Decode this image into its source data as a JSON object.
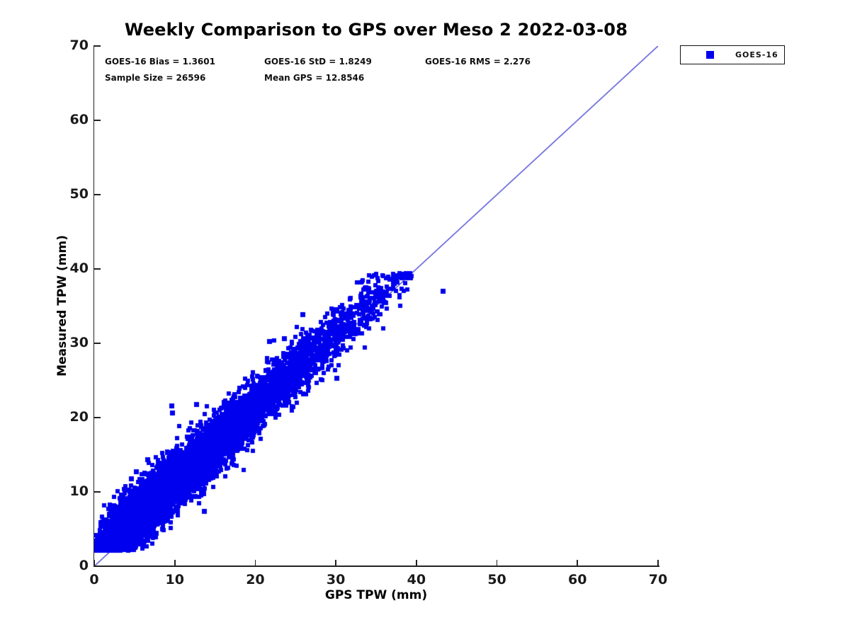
{
  "title": "Weekly Comparison to GPS over Meso 2 2022-03-08",
  "annotations": {
    "bias": "GOES-16 Bias = 1.3601",
    "std": "GOES-16 StD = 1.8249",
    "rms": "GOES-16 RMS = 2.276",
    "sample_size": "Sample Size = 26596",
    "mean_gps": "Mean GPS = 12.8546"
  },
  "axes": {
    "xlabel": "GPS TPW (mm)",
    "ylabel": "Measured TPW (mm)",
    "x_ticks": [
      "0",
      "10",
      "20",
      "30",
      "40",
      "50",
      "60",
      "70"
    ],
    "y_ticks": [
      "0",
      "10",
      "20",
      "30",
      "40",
      "50",
      "60",
      "70"
    ],
    "xlim": [
      0,
      70
    ],
    "ylim": [
      0,
      70
    ]
  },
  "legend": {
    "entries": [
      {
        "label": "GOES-16",
        "marker": "square",
        "color": "#0000ee"
      }
    ]
  },
  "colors": {
    "marker": "#0000ee",
    "reference_line": "#2222cc",
    "axis": "#222222",
    "text": "#000000",
    "background": "#ffffff"
  },
  "chart_data": {
    "type": "scatter",
    "title": "Weekly Comparison to GPS over Meso 2 2022-03-08",
    "xlabel": "GPS TPW (mm)",
    "ylabel": "Measured TPW (mm)",
    "xlim": [
      0,
      70
    ],
    "ylim": [
      0,
      70
    ],
    "grid": false,
    "legend_position": "top-right-outside",
    "reference_line": {
      "type": "identity",
      "from": [
        0,
        0
      ],
      "to": [
        70,
        70
      ],
      "color": "#2222cc"
    },
    "series": [
      {
        "name": "GOES-16",
        "marker": "square",
        "color": "#0000ee",
        "sample_size": 26596,
        "bias": 1.3601,
        "std": 1.8249,
        "rms": 2.276,
        "mean_gps": 12.8546,
        "x_range_observed": [
          0,
          43.5
        ],
        "y_range_observed": [
          2.0,
          39.5
        ],
        "render": {
          "seed": 20220308,
          "points_rendered": 8000,
          "x_gamma_shape": 2,
          "x_gamma_scale": 6.43,
          "x_max": 39.5,
          "y_floor": 2.05,
          "y_max": 39.5,
          "marker_px": 6,
          "stray_probability": 0.004,
          "stray_spread": 9
        },
        "notable_points": [
          [
            43.3,
            37.0
          ],
          [
            38.8,
            38.8
          ],
          [
            9.6,
            21.6
          ],
          [
            9.7,
            20.6
          ],
          [
            12.7,
            21.8
          ],
          [
            6.6,
            14.3
          ],
          [
            5.2,
            12.7
          ],
          [
            4.6,
            11.8
          ],
          [
            13.7,
            7.4
          ],
          [
            21.8,
            30.2
          ],
          [
            23.6,
            30.6
          ],
          [
            30.1,
            25.3
          ],
          [
            25.9,
            33.9
          ]
        ]
      }
    ]
  }
}
